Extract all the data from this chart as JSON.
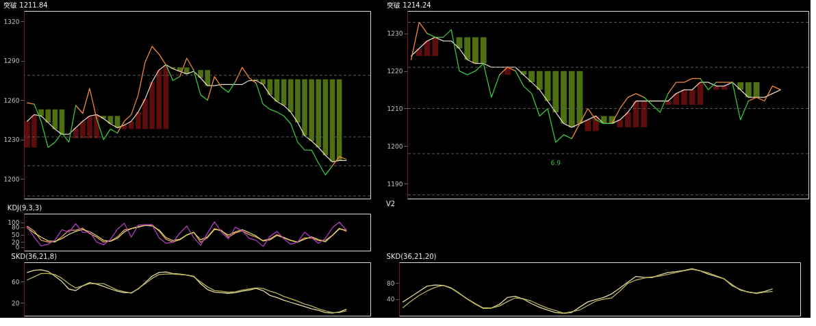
{
  "chart_data": [
    {
      "type": "line",
      "title": "突破 1211.84",
      "categories": [
        null,
        null,
        null,
        null,
        null,
        null,
        null,
        null,
        null,
        null,
        null,
        null,
        null,
        null,
        null,
        null,
        null,
        null,
        null,
        null,
        null,
        null,
        null,
        null,
        null,
        null,
        null,
        null,
        null,
        null,
        null,
        null,
        null,
        null,
        null,
        null,
        null,
        null,
        null,
        null,
        null,
        null,
        null,
        null,
        null,
        null,
        null,
        null,
        null,
        null
      ],
      "series": [
        {
          "type": "bar",
          "color": "#5e0d0d",
          "base": [
            1224,
            1224,
            null,
            null,
            null,
            null,
            null,
            1231,
            1231,
            1231,
            1231,
            null,
            null,
            null,
            1238,
            1238,
            1238,
            1238,
            1238,
            1238,
            1238,
            null,
            null,
            null,
            null,
            null,
            null,
            null,
            null,
            null,
            null,
            null,
            null,
            null,
            null,
            null,
            null,
            null,
            null,
            null,
            null,
            null,
            null,
            null,
            null,
            null,
            null,
            null,
            null,
            null
          ],
          "values": [
            20,
            25,
            null,
            null,
            null,
            null,
            null,
            8,
            13,
            17,
            18,
            null,
            null,
            null,
            3,
            6,
            13,
            23,
            36,
            45,
            49,
            null,
            null,
            null,
            null,
            null,
            null,
            null,
            null,
            null,
            null,
            null,
            null,
            null,
            null,
            null,
            null,
            null,
            null,
            null,
            null,
            null,
            null,
            null,
            null,
            null,
            null,
            null,
            null,
            null
          ]
        },
        {
          "type": "bar",
          "color": "#4e7012",
          "base": [
            null,
            null,
            1248,
            1243,
            1238,
            1234,
            null,
            null,
            null,
            null,
            null,
            1246,
            1242,
            1239,
            null,
            null,
            null,
            null,
            null,
            null,
            null,
            1284,
            1282,
            1280,
            null,
            1277,
            1271,
            null,
            null,
            null,
            null,
            null,
            null,
            1275,
            1272,
            1264,
            1259,
            1256,
            1251,
            1243,
            1233,
            1229,
            1224,
            1218,
            1213,
            1214,
            null,
            null,
            null,
            null
          ],
          "values": [
            null,
            null,
            5,
            10,
            15,
            19,
            null,
            null,
            null,
            null,
            null,
            2,
            6,
            9,
            null,
            null,
            null,
            null,
            null,
            null,
            null,
            1,
            3,
            5,
            null,
            6,
            12,
            null,
            null,
            null,
            null,
            null,
            null,
            1,
            4,
            12,
            17,
            20,
            25,
            33,
            43,
            47,
            52,
            58,
            63,
            62,
            null,
            null,
            null,
            null
          ]
        },
        {
          "color": "#ddd5c5",
          "values": [
            1244,
            1249,
            1248,
            1243,
            1238,
            1234,
            1234,
            1239,
            1244,
            1248,
            1249,
            1246,
            1242,
            1239,
            1241,
            1244,
            1251,
            1261,
            1274,
            1283,
            1287,
            1284,
            1282,
            1280,
            1282,
            1277,
            1271,
            1271,
            1272,
            1272,
            1272,
            1272,
            1275,
            1275,
            1272,
            1264,
            1259,
            1256,
            1251,
            1243,
            1233,
            1229,
            1224,
            1218,
            1213,
            1214,
            1214,
            null,
            null,
            null
          ]
        },
        {
          "color": "#f0883a",
          "values": [
            1258,
            1257,
            null,
            null,
            null,
            null,
            null,
            1256,
            1250,
            1269,
            1246,
            null,
            null,
            1235,
            1244,
            1249,
            1264,
            1289,
            1301,
            1295,
            1287,
            null,
            1278,
            1292,
            1283,
            null,
            1260,
            1278,
            1270,
            null,
            1274,
            1285,
            1277,
            1273,
            null,
            null,
            null,
            null,
            null,
            null,
            null,
            null,
            null,
            null,
            1210,
            1217,
            1215,
            null,
            null,
            null
          ]
        },
        {
          "color": "#3cc43c",
          "values": [
            null,
            1257,
            1244,
            1224,
            1228,
            1235,
            1228,
            1256,
            null,
            null,
            1246,
            1230,
            1238,
            1235,
            null,
            null,
            null,
            null,
            null,
            null,
            1287,
            1275,
            1278,
            null,
            1283,
            1264,
            1260,
            null,
            1270,
            1266,
            1274,
            null,
            null,
            1273,
            1257,
            1253,
            1251,
            1248,
            1242,
            1228,
            1222,
            1222,
            1212,
            1203,
            1210,
            null,
            null,
            null,
            null,
            null
          ]
        }
      ],
      "ylim": [
        1185,
        1328
      ],
      "yticks": [
        1200,
        1230,
        1260,
        1290,
        1320
      ],
      "tick_labels": "y",
      "ref_lines": [
        {
          "axis": "y",
          "value": 1279,
          "color": "#5a5a5a",
          "line_style": "dashed"
        },
        {
          "axis": "y",
          "value": 1232,
          "color": "#5a5a5a",
          "line_style": "dashed"
        },
        {
          "axis": "y",
          "value": 1210,
          "color": "#5a5a5a",
          "line_style": "dashed"
        },
        {
          "axis": "y",
          "value": 1187,
          "color": "#5a5a5a",
          "line_style": "dashed"
        }
      ]
    },
    {
      "type": "line",
      "title": "突破 1214.24",
      "categories": [
        null,
        null,
        null,
        null,
        null,
        null,
        null,
        null,
        null,
        null,
        null,
        null,
        null,
        null,
        null,
        null,
        null,
        null,
        null,
        null,
        null,
        null,
        null,
        null,
        null,
        null,
        null,
        null,
        null,
        null,
        null,
        null,
        null,
        null,
        null,
        null,
        null,
        null,
        null,
        null,
        null,
        null,
        null,
        null,
        null,
        null,
        null,
        null,
        null,
        null
      ],
      "series": [
        {
          "type": "bar",
          "color": "#5e0d0d",
          "base": [
            null,
            1224,
            1224,
            1224,
            null,
            null,
            null,
            null,
            null,
            null,
            null,
            null,
            1219,
            null,
            null,
            null,
            null,
            null,
            null,
            null,
            null,
            null,
            1204,
            1204,
            null,
            null,
            1205,
            1205,
            1205,
            1205,
            null,
            null,
            1211,
            1211,
            1211,
            1211,
            1211,
            null,
            1215,
            1215,
            null,
            null,
            null,
            null,
            null,
            null,
            null,
            null,
            null,
            null
          ],
          "values": [
            null,
            2,
            4,
            5,
            null,
            null,
            null,
            null,
            null,
            null,
            null,
            null,
            2,
            null,
            null,
            null,
            null,
            null,
            null,
            null,
            null,
            null,
            3,
            4,
            null,
            null,
            2,
            4,
            7,
            7,
            null,
            null,
            1,
            3,
            4,
            4,
            6,
            null,
            1,
            1,
            null,
            null,
            null,
            null,
            null,
            null,
            null,
            null,
            null,
            null
          ]
        },
        {
          "type": "bar",
          "color": "#4e7012",
          "base": [
            null,
            null,
            null,
            null,
            null,
            null,
            1226,
            1223,
            1222,
            1222,
            null,
            null,
            null,
            null,
            1219,
            1217,
            1215,
            1212,
            1209,
            1206,
            1205,
            1206,
            null,
            null,
            1206,
            1206,
            null,
            null,
            null,
            null,
            null,
            null,
            null,
            null,
            null,
            null,
            null,
            null,
            null,
            null,
            null,
            1215,
            1213,
            1213,
            null,
            null,
            null,
            null,
            null,
            null
          ],
          "values": [
            null,
            null,
            null,
            null,
            null,
            null,
            3,
            6,
            7,
            7,
            null,
            null,
            null,
            null,
            1,
            3,
            5,
            8,
            11,
            14,
            15,
            14,
            null,
            null,
            2,
            2,
            null,
            null,
            null,
            null,
            null,
            null,
            null,
            null,
            null,
            null,
            null,
            null,
            null,
            null,
            null,
            2,
            4,
            4,
            null,
            null,
            null,
            null,
            null,
            null
          ]
        },
        {
          "color": "#ddd5c5",
          "values": [
            1224,
            1226,
            1228,
            1229,
            1228,
            1228,
            1226,
            1223,
            1222,
            1222,
            1221,
            1221,
            1221,
            1221,
            1219,
            1217,
            1215,
            1212,
            1209,
            1206,
            1205,
            1206,
            1207,
            1208,
            1206,
            1206,
            1207,
            1209,
            1212,
            1212,
            1212,
            1212,
            1212,
            1214,
            1215,
            1215,
            1217,
            1217,
            1216,
            1216,
            1217,
            1215,
            1213,
            1213,
            1213,
            1214,
            1215,
            null,
            null,
            null
          ]
        },
        {
          "color": "#f0883a",
          "values": [
            1223,
            1233,
            1230,
            null,
            null,
            null,
            null,
            null,
            null,
            null,
            null,
            1219,
            1221,
            1220,
            null,
            null,
            null,
            null,
            null,
            null,
            1202,
            1206,
            1210,
            1207,
            null,
            1206,
            1210,
            1213,
            1214,
            1213,
            null,
            null,
            1214,
            1217,
            1217,
            1218,
            1218,
            null,
            1217,
            1217,
            1217,
            null,
            1212,
            1213,
            1212,
            1216,
            1215,
            null,
            null,
            null
          ]
        },
        {
          "color": "#3cc43c",
          "values": [
            null,
            null,
            1230,
            1229,
            1229,
            1231,
            1220,
            1219,
            1220,
            1222,
            1213,
            1219,
            null,
            1220,
            1216,
            1214,
            1208,
            1210,
            1201,
            1203,
            1202,
            null,
            null,
            1207,
            1206,
            1206,
            null,
            null,
            null,
            1213,
            1211,
            1209,
            1214,
            null,
            null,
            null,
            1218,
            1215,
            1217,
            null,
            1217,
            1207,
            1212,
            null,
            null,
            null,
            null,
            null,
            null,
            null
          ]
        }
      ],
      "ylim": [
        1186,
        1236
      ],
      "yticks": [
        1190,
        1200,
        1210,
        1220,
        1230
      ],
      "tick_labels": "y",
      "ref_lines": [
        {
          "axis": "y",
          "value": 1233,
          "color": "#5a5a5a",
          "line_style": "dashed"
        },
        {
          "axis": "y",
          "value": 1221,
          "color": "#5a5a5a",
          "line_style": "dashed"
        },
        {
          "axis": "y",
          "value": 1210,
          "color": "#5a5a5a",
          "line_style": "dashed"
        },
        {
          "axis": "y",
          "value": 1198,
          "color": "#5a5a5a",
          "line_style": "dashed"
        },
        {
          "axis": "y",
          "value": 1187,
          "color": "#5a5a5a",
          "line_style": "dashed"
        }
      ],
      "annotations": [
        "6.9"
      ]
    },
    {
      "type": "line",
      "title": "KDJ(9,3,3)",
      "categories": [
        null,
        null,
        null,
        null,
        null,
        null,
        null,
        null,
        null,
        null,
        null,
        null,
        null,
        null,
        null,
        null,
        null,
        null,
        null,
        null,
        null,
        null,
        null,
        null,
        null,
        null,
        null,
        null,
        null,
        null,
        null,
        null,
        null,
        null,
        null,
        null,
        null,
        null,
        null,
        null,
        null,
        null,
        null,
        null,
        null,
        null,
        null,
        null,
        null,
        null
      ],
      "series": [
        {
          "color": "#e89a6a",
          "values": [
            84,
            65,
            27,
            20,
            20,
            42,
            68,
            68,
            76,
            54,
            40,
            20,
            24,
            41,
            69,
            74,
            83,
            87,
            90,
            65,
            31,
            20,
            29,
            48,
            60,
            19,
            38,
            71,
            68,
            39,
            57,
            65,
            50,
            40,
            26,
            33,
            50,
            39,
            27,
            20,
            37,
            36,
            26,
            27,
            47,
            76,
            64,
            null,
            null,
            null
          ]
        },
        {
          "color": "#d8d468",
          "values": [
            77,
            57,
            40,
            25,
            23,
            34,
            51,
            63,
            71,
            62,
            46,
            27,
            23,
            35,
            61,
            75,
            80,
            88,
            85,
            69,
            38,
            26,
            31,
            49,
            59,
            29,
            41,
            74,
            65,
            48,
            61,
            70,
            58,
            45,
            24,
            29,
            47,
            37,
            26,
            19,
            32,
            41,
            30,
            21,
            47,
            73,
            68,
            null,
            null,
            null
          ]
        },
        {
          "color": "#b23cc0",
          "values": [
            80,
            40,
            4,
            11,
            28,
            70,
            60,
            94,
            59,
            62,
            20,
            9,
            30,
            72,
            96,
            40,
            89,
            91,
            90,
            37,
            15,
            19,
            56,
            85,
            38,
            7,
            56,
            102,
            60,
            33,
            80,
            66,
            35,
            27,
            2,
            43,
            63,
            33,
            11,
            20,
            60,
            37,
            15,
            35,
            78,
            101,
            69,
            null,
            null,
            null
          ]
        }
      ],
      "ylim": [
        -15,
        135
      ],
      "yticks": [
        0,
        20,
        50,
        80,
        100
      ],
      "tick_labels": "y"
    },
    {
      "type": "other",
      "title": "V2"
    },
    {
      "type": "line",
      "title": "SKD(36,21,8)",
      "categories": [
        null,
        null,
        null,
        null,
        null,
        null,
        null,
        null,
        null,
        null,
        null,
        null,
        null,
        null,
        null,
        null,
        null,
        null,
        null,
        null,
        null,
        null,
        null,
        null,
        null,
        null,
        null,
        null,
        null,
        null,
        null,
        null,
        null,
        null,
        null,
        null,
        null,
        null,
        null,
        null,
        null,
        null,
        null,
        null,
        null,
        null,
        null,
        null,
        null,
        null
      ],
      "series": [
        {
          "color": "#e0dca0",
          "values": [
            77,
            81,
            82,
            79,
            70,
            60,
            46,
            43,
            52,
            58,
            55,
            51,
            46,
            42,
            39,
            39,
            46,
            58,
            70,
            77,
            78,
            75,
            74,
            72,
            70,
            56,
            45,
            40,
            39,
            38,
            39,
            42,
            44,
            47,
            43,
            34,
            30,
            25,
            21,
            17,
            13,
            9,
            6,
            2,
            1,
            3,
            8,
            null,
            null,
            null
          ]
        },
        {
          "color": "#b8b45a",
          "values": [
            63,
            69,
            75,
            75,
            73,
            66,
            56,
            48,
            52,
            56,
            56,
            56,
            50,
            44,
            41,
            38,
            47,
            56,
            66,
            73,
            74,
            74,
            73,
            72,
            69,
            59,
            50,
            43,
            42,
            40,
            41,
            44,
            46,
            48,
            47,
            42,
            38,
            32,
            28,
            23,
            18,
            14,
            9,
            5,
            2,
            2,
            5,
            null,
            null,
            null
          ]
        }
      ],
      "ylim": [
        -4,
        96
      ],
      "yticks": [
        20,
        60
      ],
      "tick_labels": "y"
    },
    {
      "type": "line",
      "title": "SKD(36,21,20)",
      "categories": [
        null,
        null,
        null,
        null,
        null,
        null,
        null,
        null,
        null,
        null,
        null,
        null,
        null,
        null,
        null,
        null,
        null,
        null,
        null,
        null,
        null,
        null,
        null,
        null,
        null,
        null,
        null,
        null,
        null,
        null,
        null,
        null,
        null,
        null,
        null,
        null,
        null,
        null,
        null,
        null,
        null,
        null,
        null,
        null,
        null,
        null,
        null,
        null,
        null,
        null
      ],
      "series": [
        {
          "color": "#e0dca0",
          "values": [
            33,
            46,
            59,
            72,
            75,
            74,
            67,
            54,
            41,
            29,
            18,
            18,
            27,
            44,
            47,
            40,
            29,
            20,
            13,
            7,
            5,
            7,
            20,
            33,
            39,
            44,
            53,
            67,
            82,
            96,
            94,
            93,
            100,
            106,
            108,
            111,
            115,
            110,
            102,
            96,
            90,
            73,
            64,
            57,
            55,
            59,
            65,
            null,
            null,
            null
          ]
        },
        {
          "color": "#b8b45a",
          "values": [
            19,
            35,
            49,
            60,
            69,
            74,
            68,
            55,
            40,
            28,
            17,
            18,
            23,
            34,
            43,
            41,
            35,
            26,
            18,
            12,
            5,
            9,
            13,
            24,
            35,
            40,
            43,
            60,
            79,
            87,
            92,
            95,
            97,
            101,
            106,
            110,
            114,
            110,
            105,
            98,
            90,
            76,
            62,
            58,
            54,
            57,
            59,
            null,
            null,
            null
          ]
        }
      ],
      "ylim": [
        -1,
        131
      ],
      "yticks": [
        40,
        80
      ],
      "tick_labels": "y"
    }
  ]
}
